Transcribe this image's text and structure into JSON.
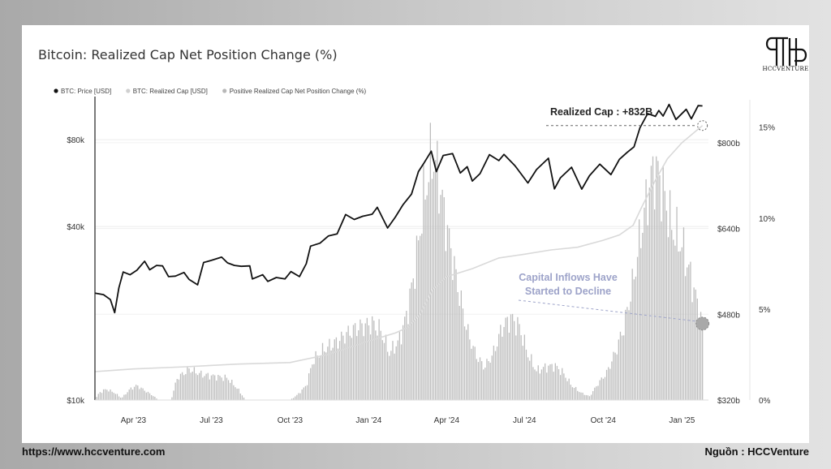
{
  "chart_title": "Bitcoin: Realized Cap Net Position Change (%)",
  "logo_text": "HCCVENTURE",
  "footer": {
    "url": "https://www.hccventure.com",
    "source": "Nguồn : HCCVenture"
  },
  "colors": {
    "price_line": "#111111",
    "realized_cap_line": "#d9d9d9",
    "net_change_bars": "#bdbdbd",
    "annotation": "#9da3c9"
  },
  "chart_data": {
    "type": "bar",
    "legend": [
      {
        "label": "BTC: Price [USD]",
        "type": "line",
        "color": "#111111"
      },
      {
        "label": "BTC: Realized Cap [USD]",
        "type": "line",
        "color": "#d9d9d9"
      },
      {
        "label": "Positive Realized Cap Net Position Change (%)",
        "type": "bar",
        "color": "#bdbdbd"
      }
    ],
    "legend_position": "top-left",
    "x_axis": {
      "range": [
        "2023-02-15",
        "2025-02-01"
      ],
      "ticks": [
        {
          "date": "2023-04-01",
          "label": "Apr '23"
        },
        {
          "date": "2023-07-01",
          "label": "Jul '23"
        },
        {
          "date": "2023-10-01",
          "label": "Oct '23"
        },
        {
          "date": "2024-01-01",
          "label": "Jan '24"
        },
        {
          "date": "2024-04-01",
          "label": "Apr '24"
        },
        {
          "date": "2024-07-01",
          "label": "Jul '24"
        },
        {
          "date": "2024-10-01",
          "label": "Oct '24"
        },
        {
          "date": "2025-01-01",
          "label": "Jan '25"
        }
      ]
    },
    "y_axis_price": {
      "scale": "log",
      "range": [
        10000,
        110000
      ],
      "ticks": [
        {
          "value": 10000,
          "label": "$10k"
        },
        {
          "value": 40000,
          "label": "$40k"
        },
        {
          "value": 80000,
          "label": "$80k"
        }
      ]
    },
    "y_axis_realized_cap": {
      "range": [
        320,
        880
      ],
      "ticks": [
        {
          "value": 320,
          "label": "$320b"
        },
        {
          "value": 480,
          "label": "$480b"
        },
        {
          "value": 640,
          "label": "$640b"
        },
        {
          "value": 800,
          "label": "$800b"
        }
      ]
    },
    "y_axis_pct": {
      "range": [
        0,
        16.5
      ],
      "ticks": [
        {
          "value": 0,
          "label": "0%"
        },
        {
          "value": 5,
          "label": "5%"
        },
        {
          "value": 10,
          "label": "10%"
        },
        {
          "value": 15,
          "label": "15%"
        }
      ]
    },
    "grid": true,
    "series": [
      {
        "name": "BTC: Price [USD]",
        "axis": "price",
        "points": [
          [
            "2023-02-15",
            23500
          ],
          [
            "2023-02-25",
            23200
          ],
          [
            "2023-03-05",
            22300
          ],
          [
            "2023-03-10",
            20100
          ],
          [
            "2023-03-15",
            24500
          ],
          [
            "2023-03-20",
            27800
          ],
          [
            "2023-03-28",
            27200
          ],
          [
            "2023-04-05",
            28200
          ],
          [
            "2023-04-14",
            30300
          ],
          [
            "2023-04-20",
            28300
          ],
          [
            "2023-04-28",
            29300
          ],
          [
            "2023-05-05",
            29200
          ],
          [
            "2023-05-12",
            26800
          ],
          [
            "2023-05-20",
            26900
          ],
          [
            "2023-05-30",
            27700
          ],
          [
            "2023-06-05",
            26200
          ],
          [
            "2023-06-15",
            25100
          ],
          [
            "2023-06-22",
            30000
          ],
          [
            "2023-07-01",
            30500
          ],
          [
            "2023-07-13",
            31300
          ],
          [
            "2023-07-20",
            29900
          ],
          [
            "2023-07-28",
            29300
          ],
          [
            "2023-08-05",
            29100
          ],
          [
            "2023-08-15",
            29200
          ],
          [
            "2023-08-18",
            26300
          ],
          [
            "2023-08-30",
            27200
          ],
          [
            "2023-09-05",
            25800
          ],
          [
            "2023-09-15",
            26600
          ],
          [
            "2023-09-25",
            26300
          ],
          [
            "2023-10-02",
            27900
          ],
          [
            "2023-10-12",
            26800
          ],
          [
            "2023-10-20",
            29700
          ],
          [
            "2023-10-25",
            34200
          ],
          [
            "2023-11-05",
            35000
          ],
          [
            "2023-11-15",
            37100
          ],
          [
            "2023-11-25",
            37700
          ],
          [
            "2023-12-05",
            44000
          ],
          [
            "2023-12-15",
            42300
          ],
          [
            "2023-12-25",
            43400
          ],
          [
            "2024-01-05",
            44100
          ],
          [
            "2024-01-11",
            46600
          ],
          [
            "2024-01-23",
            39500
          ],
          [
            "2024-02-01",
            43100
          ],
          [
            "2024-02-10",
            47600
          ],
          [
            "2024-02-20",
            51800
          ],
          [
            "2024-02-28",
            62000
          ],
          [
            "2024-03-05",
            66000
          ],
          [
            "2024-03-14",
            73000
          ],
          [
            "2024-03-20",
            62000
          ],
          [
            "2024-03-28",
            70500
          ],
          [
            "2024-04-08",
            71600
          ],
          [
            "2024-04-17",
            61300
          ],
          [
            "2024-04-25",
            64500
          ],
          [
            "2024-05-01",
            57500
          ],
          [
            "2024-05-10",
            61000
          ],
          [
            "2024-05-21",
            71000
          ],
          [
            "2024-06-01",
            67700
          ],
          [
            "2024-06-07",
            71100
          ],
          [
            "2024-06-20",
            64900
          ],
          [
            "2024-07-05",
            56600
          ],
          [
            "2024-07-15",
            63000
          ],
          [
            "2024-07-29",
            69000
          ],
          [
            "2024-08-05",
            54000
          ],
          [
            "2024-08-12",
            59000
          ],
          [
            "2024-08-25",
            64200
          ],
          [
            "2024-09-06",
            53900
          ],
          [
            "2024-09-15",
            60000
          ],
          [
            "2024-09-27",
            65800
          ],
          [
            "2024-10-10",
            60500
          ],
          [
            "2024-10-20",
            68400
          ],
          [
            "2024-10-29",
            72300
          ],
          [
            "2024-11-06",
            75600
          ],
          [
            "2024-11-13",
            88000
          ],
          [
            "2024-11-22",
            98500
          ],
          [
            "2024-12-01",
            96400
          ],
          [
            "2024-12-05",
            101000
          ],
          [
            "2024-12-10",
            96600
          ],
          [
            "2024-12-17",
            106000
          ],
          [
            "2024-12-25",
            94000
          ],
          [
            "2025-01-06",
            102000
          ],
          [
            "2025-01-12",
            94500
          ],
          [
            "2025-01-20",
            105000
          ],
          [
            "2025-01-25",
            104800
          ]
        ]
      },
      {
        "name": "BTC: Realized Cap [USD]",
        "axis": "realized_cap",
        "points": [
          [
            "2023-02-15",
            373
          ],
          [
            "2023-04-01",
            378
          ],
          [
            "2023-06-01",
            382
          ],
          [
            "2023-08-01",
            387
          ],
          [
            "2023-10-01",
            390
          ],
          [
            "2023-11-15",
            405
          ],
          [
            "2024-01-01",
            430
          ],
          [
            "2024-02-01",
            445
          ],
          [
            "2024-02-15",
            455
          ],
          [
            "2024-03-01",
            480
          ],
          [
            "2024-03-15",
            525
          ],
          [
            "2024-04-01",
            550
          ],
          [
            "2024-05-01",
            565
          ],
          [
            "2024-06-01",
            585
          ],
          [
            "2024-07-01",
            592
          ],
          [
            "2024-08-01",
            600
          ],
          [
            "2024-09-01",
            605
          ],
          [
            "2024-10-01",
            618
          ],
          [
            "2024-10-20",
            628
          ],
          [
            "2024-11-05",
            646
          ],
          [
            "2024-11-15",
            680
          ],
          [
            "2024-12-01",
            730
          ],
          [
            "2024-12-15",
            770
          ],
          [
            "2025-01-01",
            800
          ],
          [
            "2025-01-25",
            832
          ]
        ]
      }
    ],
    "bar_series": {
      "name": "Positive Realized Cap Net Position Change (%)",
      "axis": "pct",
      "shape": [
        [
          "2023-02-15",
          0
        ],
        [
          "2023-02-20",
          0.4
        ],
        [
          "2023-02-28",
          0.6
        ],
        [
          "2023-03-10",
          0.4
        ],
        [
          "2023-03-18",
          0.1
        ],
        [
          "2023-03-28",
          0.6
        ],
        [
          "2023-04-05",
          0.8
        ],
        [
          "2023-04-15",
          0.5
        ],
        [
          "2023-04-25",
          0.2
        ],
        [
          "2023-04-30",
          0
        ],
        [
          "2023-05-15",
          0
        ],
        [
          "2023-05-22",
          1.2
        ],
        [
          "2023-06-05",
          1.7
        ],
        [
          "2023-06-20",
          1.4
        ],
        [
          "2023-07-05",
          1.3
        ],
        [
          "2023-07-20",
          1.2
        ],
        [
          "2023-08-01",
          0.6
        ],
        [
          "2023-08-10",
          0
        ],
        [
          "2023-10-01",
          0
        ],
        [
          "2023-10-10",
          0.3
        ],
        [
          "2023-10-20",
          0.8
        ],
        [
          "2023-10-28",
          2.2
        ],
        [
          "2023-11-10",
          2.8
        ],
        [
          "2023-11-25",
          3.2
        ],
        [
          "2023-12-05",
          3.6
        ],
        [
          "2023-12-20",
          4.0
        ],
        [
          "2024-01-05",
          4.2
        ],
        [
          "2024-01-15",
          3.8
        ],
        [
          "2024-01-25",
          2.6
        ],
        [
          "2024-02-05",
          3.2
        ],
        [
          "2024-02-15",
          4.8
        ],
        [
          "2024-02-25",
          7.5
        ],
        [
          "2024-03-05",
          11.0
        ],
        [
          "2024-03-15",
          13.5
        ],
        [
          "2024-03-20",
          12.8
        ],
        [
          "2024-04-01",
          9.5
        ],
        [
          "2024-04-15",
          6.0
        ],
        [
          "2024-04-25",
          3.8
        ],
        [
          "2024-05-05",
          2.5
        ],
        [
          "2024-05-15",
          1.8
        ],
        [
          "2024-05-25",
          2.5
        ],
        [
          "2024-06-05",
          4.0
        ],
        [
          "2024-06-15",
          4.5
        ],
        [
          "2024-06-25",
          4.0
        ],
        [
          "2024-07-05",
          2.5
        ],
        [
          "2024-07-15",
          1.6
        ],
        [
          "2024-07-25",
          1.8
        ],
        [
          "2024-08-05",
          1.9
        ],
        [
          "2024-08-15",
          1.5
        ],
        [
          "2024-08-25",
          0.8
        ],
        [
          "2024-09-05",
          0.4
        ],
        [
          "2024-09-15",
          0.2
        ],
        [
          "2024-09-25",
          0.9
        ],
        [
          "2024-10-05",
          1.5
        ],
        [
          "2024-10-15",
          2.6
        ],
        [
          "2024-10-25",
          4.0
        ],
        [
          "2024-11-05",
          6.5
        ],
        [
          "2024-11-15",
          9.5
        ],
        [
          "2024-11-25",
          12.0
        ],
        [
          "2024-12-01",
          12.8
        ],
        [
          "2024-12-10",
          11.5
        ],
        [
          "2024-12-20",
          9.5
        ],
        [
          "2025-01-01",
          8.5
        ],
        [
          "2025-01-10",
          7.0
        ],
        [
          "2025-01-18",
          5.5
        ],
        [
          "2025-01-25",
          4.1
        ]
      ]
    },
    "annotations": [
      {
        "text": "Realized Cap : +832B",
        "target_date": "2025-01-25",
        "target_value": 832,
        "axis": "realized_cap"
      },
      {
        "text": "Capital Inflows Have Started to Decline",
        "target_date": "2025-01-25",
        "target_value": 4.2,
        "axis": "pct"
      }
    ]
  }
}
